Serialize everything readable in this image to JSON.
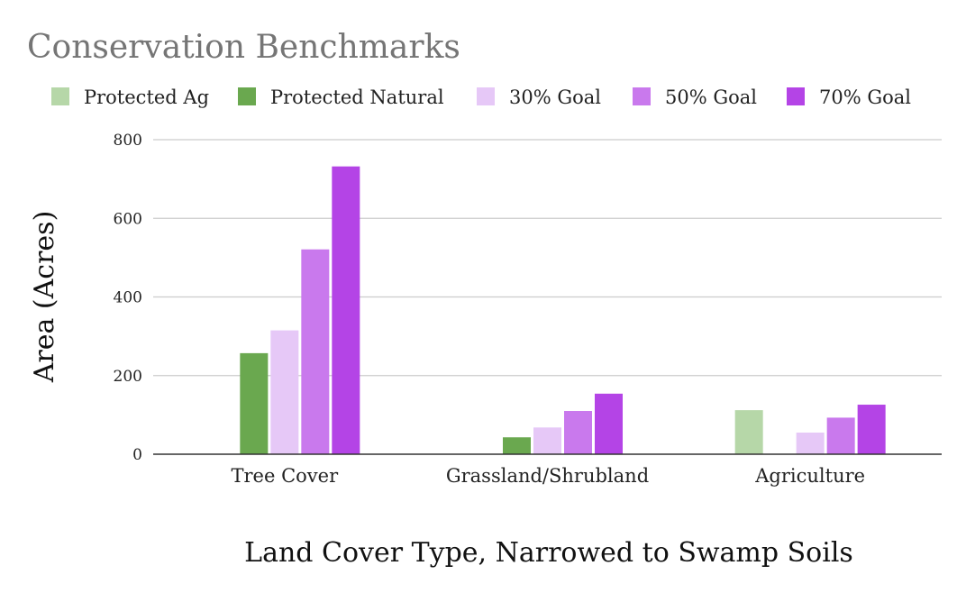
{
  "chart_data": {
    "type": "bar",
    "title": "Conservation Benchmarks",
    "xlabel": "Land Cover Type, Narrowed to Swamp Soils",
    "ylabel": "Area (Acres)",
    "ylim": [
      0,
      800
    ],
    "yticks": [
      0,
      200,
      400,
      600,
      800
    ],
    "grid": true,
    "legend_position": "top",
    "categories": [
      "Tree Cover",
      "Grassland/Shrubland",
      "Agriculture"
    ],
    "series": [
      {
        "name": "Protected Ag",
        "color": "#b6d7a8",
        "values": [
          0,
          0,
          112
        ]
      },
      {
        "name": "Protected Natural",
        "color": "#6aa84f",
        "values": [
          257,
          43,
          0
        ]
      },
      {
        "name": "30% Goal",
        "color": "#e6c8f7",
        "values": [
          315,
          68,
          55
        ]
      },
      {
        "name": "50% Goal",
        "color": "#c979ed",
        "values": [
          521,
          110,
          93
        ]
      },
      {
        "name": "70% Goal",
        "color": "#b444e6",
        "values": [
          732,
          154,
          126
        ]
      }
    ]
  }
}
